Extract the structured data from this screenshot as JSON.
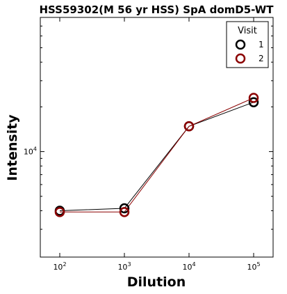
{
  "chart_data": {
    "type": "line",
    "title": "HSS59302(M 56 yr HSS) SpA domD5-WT",
    "xlabel": "Dilution",
    "ylabel": "Intensity",
    "x_scale": "log",
    "y_scale": "log",
    "xlim": [
      50,
      200000
    ],
    "ylim": [
      1950,
      80000
    ],
    "x_ticks": [
      {
        "value": 100,
        "base": "10",
        "exp": "2"
      },
      {
        "value": 1000,
        "base": "10",
        "exp": "3"
      },
      {
        "value": 10000,
        "base": "10",
        "exp": "4"
      },
      {
        "value": 100000,
        "base": "10",
        "exp": "5"
      }
    ],
    "y_ticks": [
      {
        "value": 10000,
        "base": "10",
        "exp": "4"
      }
    ],
    "y_minor_ticks": [
      3000,
      4000,
      5000,
      6000,
      7000,
      8000,
      9000,
      20000,
      30000,
      40000,
      50000,
      60000,
      70000
    ],
    "x": [
      100,
      1000,
      10000,
      100000
    ],
    "series": [
      {
        "name": "1",
        "values": [
          4000,
          4150,
          14800,
          21500
        ],
        "color": "#000000"
      },
      {
        "name": "2",
        "values": [
          3920,
          3920,
          14800,
          23000
        ],
        "color": "#8b0000"
      }
    ],
    "legend": {
      "title": "Visit",
      "placement": "top-right"
    },
    "grid": false
  }
}
